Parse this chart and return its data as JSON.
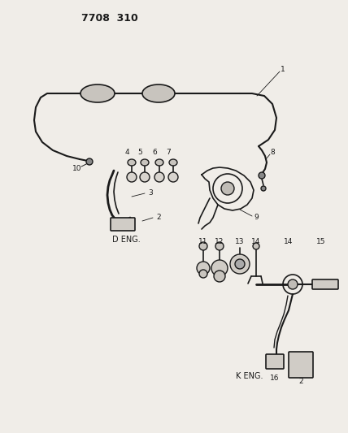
{
  "title": "7708 310",
  "background_color": "#f0ede8",
  "text_color": "#1a1a1a",
  "d_eng_label": "D ENG.",
  "k_eng_label": "K ENG.",
  "figsize": [
    4.28,
    5.33
  ],
  "dpi": 100
}
